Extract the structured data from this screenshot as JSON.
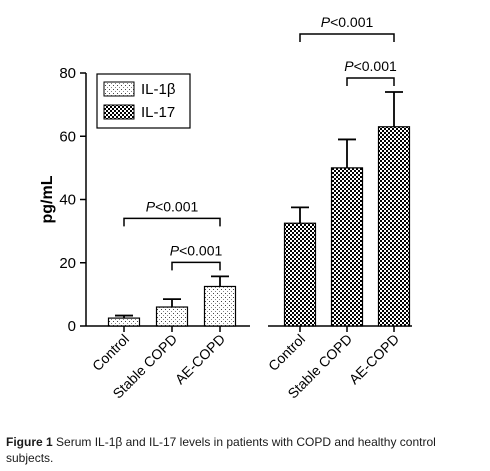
{
  "chart_data": {
    "type": "bar",
    "title": "",
    "xlabel": "",
    "ylabel": "pg/mL",
    "ylim": [
      0,
      80
    ],
    "yticks": [
      0,
      20,
      40,
      60,
      80
    ],
    "grid": false,
    "legend_position": "top-left",
    "error_bars": true,
    "groups": [
      {
        "series": "IL-1β",
        "categories": [
          "Control",
          "Stable COPD",
          "AE-COPD"
        ],
        "values": [
          2.5,
          6,
          12.5
        ],
        "errors": [
          0.8,
          2.5,
          3.2
        ]
      },
      {
        "series": "IL-17",
        "categories": [
          "Control",
          "Stable COPD",
          "AE-COPD"
        ],
        "values": [
          32.5,
          50,
          63
        ],
        "errors": [
          5,
          9,
          11
        ]
      }
    ],
    "series": [
      {
        "name": "IL-1β",
        "pattern": "fine-dots"
      },
      {
        "name": "IL-17",
        "pattern": "checker"
      }
    ],
    "annotations": [
      {
        "group": 0,
        "from": 0,
        "to": 2,
        "label_italic": "P",
        "label_rest": "<0.001",
        "level": 2
      },
      {
        "group": 0,
        "from": 1,
        "to": 2,
        "label_italic": "P",
        "label_rest": "<0.001",
        "level": 1
      },
      {
        "group": 1,
        "from": 0,
        "to": 2,
        "label_italic": "P",
        "label_rest": "<0.001",
        "level": 2
      },
      {
        "group": 1,
        "from": 1,
        "to": 2,
        "label_italic": "P",
        "label_rest": "<0.001",
        "level": 1
      }
    ]
  },
  "caption": {
    "label": "Figure 1",
    "text": "Serum IL-1β and IL-17 levels in patients with COPD and healthy control subjects."
  }
}
